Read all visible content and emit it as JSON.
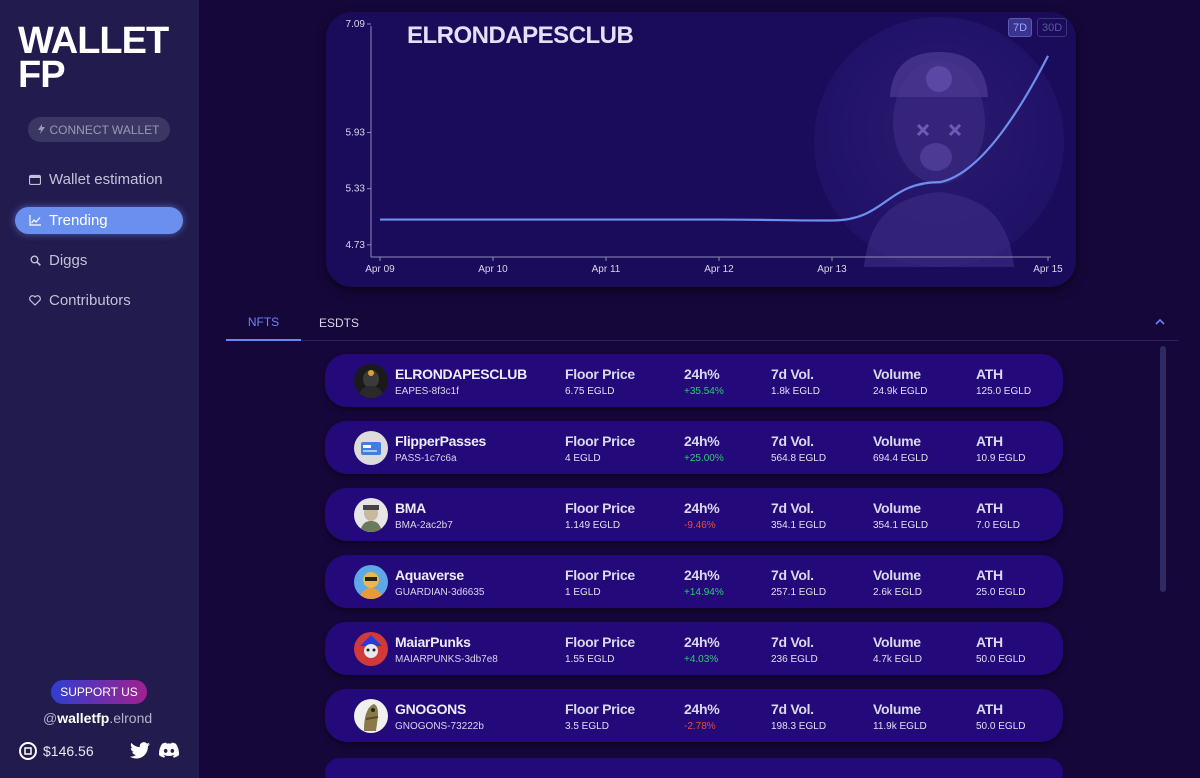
{
  "sidebar": {
    "logo": "WALLET FP",
    "connect_label": "CONNECT WALLET",
    "nav": [
      {
        "label": "Wallet estimation",
        "icon": "wallet-icon",
        "active": false
      },
      {
        "label": "Trending",
        "icon": "chart-line-icon",
        "active": true
      },
      {
        "label": "Diggs",
        "icon": "search-icon",
        "active": false
      },
      {
        "label": "Contributors",
        "icon": "heart-icon",
        "active": false
      }
    ],
    "support_label": "SUPPORT US",
    "handle_prefix": "@",
    "handle_bold": "walletfp",
    "handle_suffix": ".elrond",
    "egld_price": "$146.56"
  },
  "chart_data": {
    "type": "line",
    "title": "ELRONDAPESCLUB",
    "x_labels": [
      "Apr 09",
      "Apr 10",
      "Apr 11",
      "Apr 12",
      "Apr 13",
      "Apr 15"
    ],
    "y_ticks": [
      "7.09",
      "5.93",
      "5.33",
      "4.73"
    ],
    "ylim": [
      4.6,
      7.09
    ],
    "series": [
      {
        "values": [
          {
            "x": "Apr 09",
            "y": 5.0
          },
          {
            "x": "Apr 10",
            "y": 5.0
          },
          {
            "x": "Apr 11",
            "y": 5.0
          },
          {
            "x": "Apr 12",
            "y": 5.0
          },
          {
            "x": "Apr 13",
            "y": 4.99
          },
          {
            "x": "Apr 14",
            "y": 5.4
          },
          {
            "x": "Apr 15",
            "y": 6.75
          }
        ],
        "color": "#6f8ff0"
      }
    ],
    "periods": [
      "7D",
      "30D"
    ],
    "active_period": "7D"
  },
  "tabs": [
    {
      "label": "NFTS",
      "active": true
    },
    {
      "label": "ESDTS",
      "active": false
    }
  ],
  "columns": {
    "floor": "Floor Price",
    "change": "24h%",
    "vol7d": "7d Vol.",
    "volume": "Volume",
    "ath": "ATH"
  },
  "collections": [
    {
      "name": "ELRONDAPESCLUB",
      "ticker": "EAPES-8f3c1f",
      "floor": "6.75 EGLD",
      "change": "+35.54%",
      "trend": "pos",
      "vol7d": "1.8k EGLD",
      "volume": "24.9k EGLD",
      "ath": "125.0 EGLD"
    },
    {
      "name": "FlipperPasses",
      "ticker": "PASS-1c7c6a",
      "floor": "4 EGLD",
      "change": "+25.00%",
      "trend": "pos",
      "vol7d": "564.8 EGLD",
      "volume": "694.4 EGLD",
      "ath": "10.9 EGLD"
    },
    {
      "name": "BMA",
      "ticker": "BMA-2ac2b7",
      "floor": "1.149 EGLD",
      "change": "-9.46%",
      "trend": "neg",
      "vol7d": "354.1 EGLD",
      "volume": "354.1 EGLD",
      "ath": "7.0 EGLD"
    },
    {
      "name": "Aquaverse",
      "ticker": "GUARDIAN-3d6635",
      "floor": "1 EGLD",
      "change": "+14.94%",
      "trend": "pos",
      "vol7d": "257.1 EGLD",
      "volume": "2.6k EGLD",
      "ath": "25.0 EGLD"
    },
    {
      "name": "MaiarPunks",
      "ticker": "MAIARPUNKS-3db7e8",
      "floor": "1.55 EGLD",
      "change": "+4.03%",
      "trend": "pos",
      "vol7d": "236 EGLD",
      "volume": "4.7k EGLD",
      "ath": "50.0 EGLD"
    },
    {
      "name": "GNOGONS",
      "ticker": "GNOGONS-73222b",
      "floor": "3.5 EGLD",
      "change": "-2.78%",
      "trend": "neg",
      "vol7d": "198.3 EGLD",
      "volume": "11.9k EGLD",
      "ath": "50.0 EGLD"
    }
  ]
}
